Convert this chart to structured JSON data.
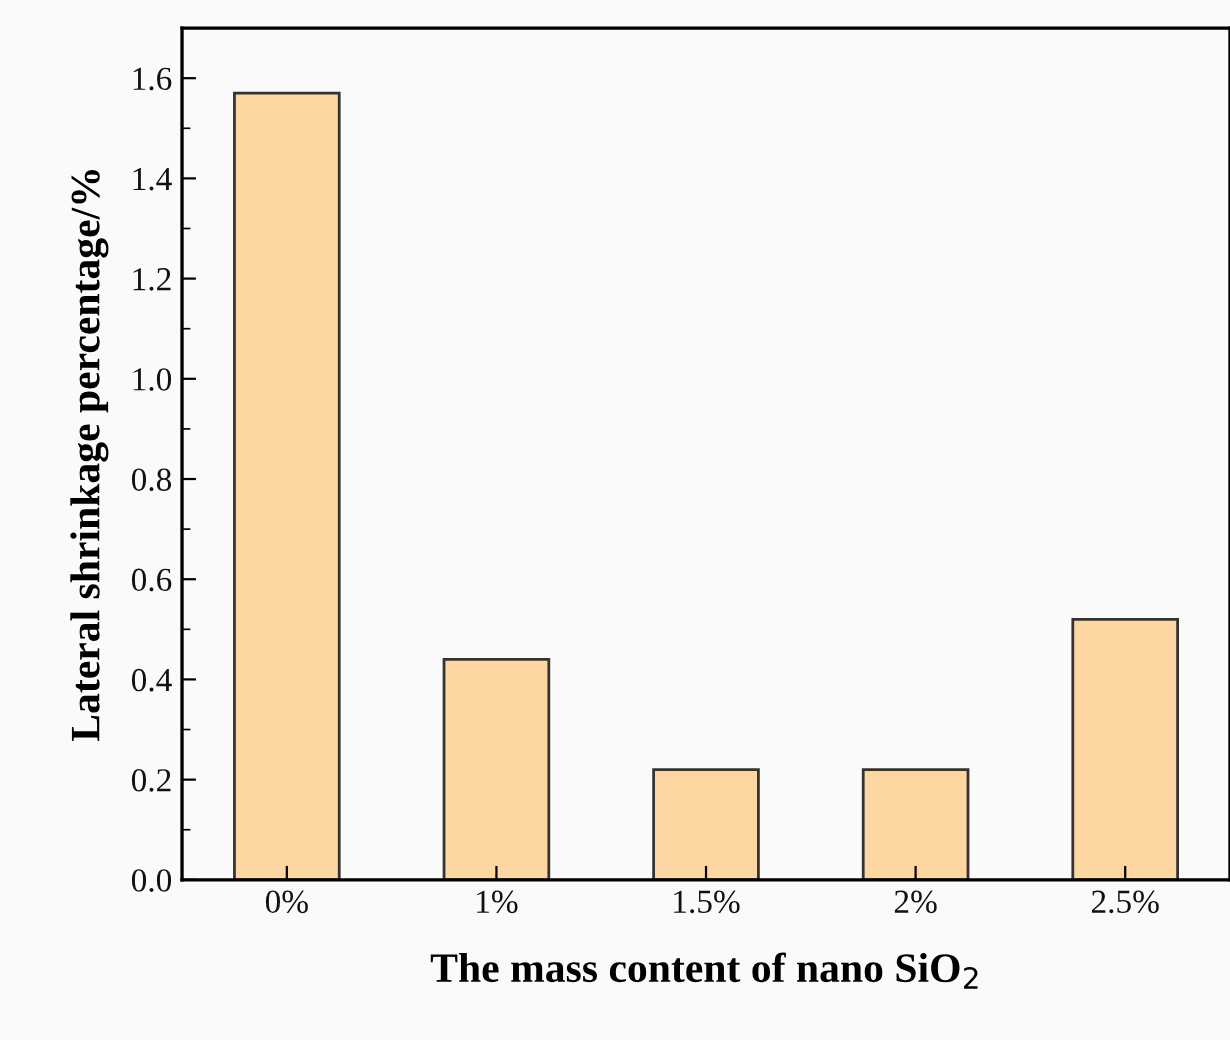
{
  "chart_data": {
    "type": "bar",
    "xlabel": "The mass content of nano SiO$_{2}$",
    "ylabel": "Lateral shrinkage percentage/%",
    "categories": [
      "0%",
      "1%",
      "1.5%",
      "2%",
      "2.5%"
    ],
    "values": [
      1.57,
      0.44,
      0.22,
      0.22,
      0.52
    ],
    "color": "#fdd6a2",
    "ylim": [
      0,
      1.7
    ],
    "yticks": [
      {
        "value": 0,
        "label": "0.0"
      },
      0.2,
      0.4,
      0.6,
      0.8,
      {
        "value": 1,
        "label": "1.0"
      },
      1.2,
      1.4,
      1.6
    ],
    "grid": false,
    "legend": false
  }
}
